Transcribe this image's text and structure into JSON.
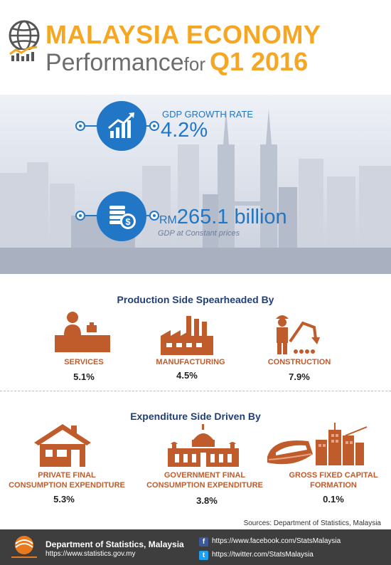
{
  "header": {
    "title_line1": "MALAYSIA ECONOMY",
    "title_performance": "Performance",
    "title_for": "for",
    "title_quarter": "Q1 2016"
  },
  "gdp_growth": {
    "label": "GDP GROWTH RATE",
    "value": "4.2%",
    "icon": "rising-bar-chart-icon"
  },
  "gdp_value": {
    "currency": "RM",
    "value": "265.1 billion",
    "sub": "GDP at Constant prices",
    "icon": "coins-dollar-icon"
  },
  "production": {
    "title": "Production Side Spearheaded By",
    "items": [
      {
        "label": "SERVICES",
        "value": "5.1%",
        "icon": "cashier-icon"
      },
      {
        "label": "MANUFACTURING",
        "value": "4.5%",
        "icon": "factory-icon"
      },
      {
        "label": "CONSTRUCTION",
        "value": "7.9%",
        "icon": "construction-worker-excavator-icon"
      }
    ]
  },
  "expenditure": {
    "title": "Expenditure Side Driven By",
    "items": [
      {
        "label_line1": "PRIVATE FINAL",
        "label_line2": "CONSUMPTION EXPENDITURE",
        "value": "5.3%",
        "icon": "house-icon"
      },
      {
        "label_line1": "GOVERNMENT FINAL",
        "label_line2": "CONSUMPTION EXPENDITURE",
        "value": "3.8%",
        "icon": "government-building-icon"
      },
      {
        "label_line1": "GROSS FIXED CAPITAL",
        "label_line2": "FORMATION",
        "value": "0.1%",
        "icon": "train-buildings-crane-icon"
      }
    ]
  },
  "sources": "Sources: Department of Statistics, Malaysia",
  "footer": {
    "org_name": "Department of Statistics, Malaysia",
    "website": "https://www.statistics.gov.my",
    "facebook": "https://www.facebook.com/StatsMalaysia",
    "twitter": "https://twitter.com/StatsMalaysia"
  },
  "colors": {
    "accent_orange": "#f5a623",
    "stat_blue": "#2176c5",
    "icon_orange": "#c05b2c",
    "heading_navy": "#1f3f7a",
    "footer_bg": "#3e3e3e"
  }
}
